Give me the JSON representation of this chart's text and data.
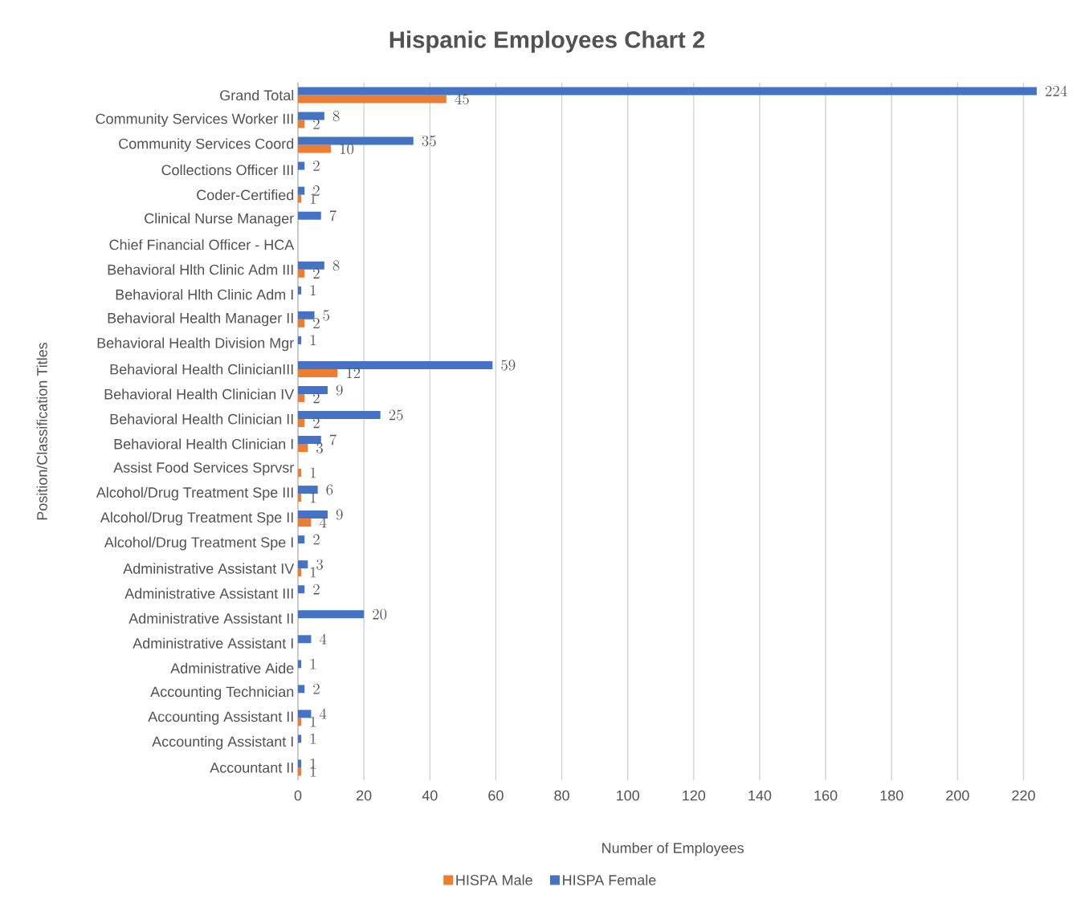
{
  "chart_data": {
    "type": "bar",
    "orientation": "horizontal",
    "title": "Hispanic Employees Chart 2",
    "xlabel": "Number of Employees",
    "ylabel": "Position/Classification Titles",
    "categories": [
      "Grand Total",
      "Community Services Worker III",
      "Community Services Coord",
      "Collections Officer III",
      "Coder-Certified",
      "Clinical Nurse Manager",
      "Chief Financial Officer - HCA",
      "Behavioral Hlth Clinic Adm III",
      "Behavioral Hlth Clinic Adm I",
      "Behavioral Health Manager II",
      "Behavioral Health Division Mgr",
      "Behavioral Health ClinicianIII",
      "Behavioral Health Clinician IV",
      "Behavioral Health Clinician II",
      "Behavioral Health Clinician I",
      "Assist Food Services Sprvsr",
      "Alcohol/Drug Treatment Spe III",
      "Alcohol/Drug Treatment Spe II",
      "Alcohol/Drug Treatment Spe I",
      "Administrative Assistant IV",
      "Administrative Assistant III",
      "Administrative Assistant II",
      "Administrative Assistant I",
      "Administrative Aide",
      "Accounting Technician",
      "Accounting Assistant II",
      "Accounting Assistant I",
      "Accountant II"
    ],
    "series": [
      {
        "name": "HISPA Male",
        "color": "#ed7d31",
        "values": [
          45,
          2,
          10,
          null,
          1,
          null,
          null,
          2,
          null,
          2,
          null,
          12,
          2,
          2,
          3,
          1,
          1,
          4,
          null,
          1,
          null,
          null,
          null,
          null,
          null,
          1,
          null,
          1
        ]
      },
      {
        "name": "HISPA Female",
        "color": "#4472c4",
        "values": [
          224,
          8,
          35,
          2,
          2,
          7,
          null,
          8,
          1,
          5,
          1,
          59,
          9,
          25,
          7,
          null,
          6,
          9,
          2,
          3,
          2,
          20,
          4,
          1,
          2,
          4,
          1,
          1
        ]
      }
    ],
    "xlim": [
      0,
      225
    ],
    "xticks": [
      0,
      20,
      40,
      60,
      80,
      100,
      120,
      140,
      160,
      180,
      200,
      220
    ],
    "grid": "x",
    "legend": "bottom",
    "data_labels": true
  }
}
